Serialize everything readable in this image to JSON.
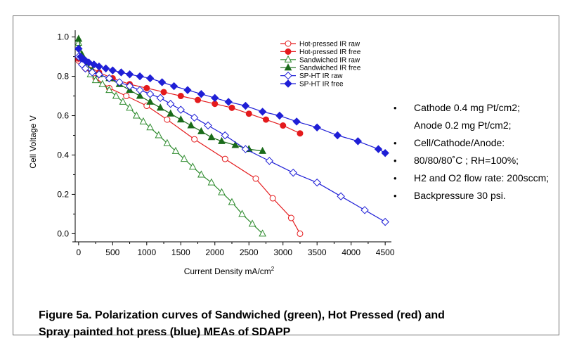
{
  "figure": {
    "caption_line1": "Figure 5a.  Polarization curves of Sandwiched (green), Hot Pressed (red) and",
    "caption_line2": "Spray painted hot press (blue) MEAs of SDAPP"
  },
  "notes": {
    "bullet": "•",
    "lines": [
      "Cathode 0.4 mg Pt/cm2;",
      "Anode 0.2 mg Pt/cm2;",
      "Cell/Cathode/Anode:",
      "80/80/80˚C ; RH=100%;",
      "H2 and O2 flow rate: 200sccm;",
      "Backpressure 30 psi."
    ],
    "bullet_rows": [
      0,
      2,
      3,
      4,
      5
    ]
  },
  "chart_data": {
    "type": "line",
    "xlabel": "Current Density mA/cm",
    "xlabel_sup": "2",
    "ylabel": "Cell Voltage V",
    "xlim": [
      -50,
      4550
    ],
    "ylim": [
      -0.02,
      1.02
    ],
    "xticks": [
      0,
      500,
      1000,
      1500,
      2000,
      2500,
      3000,
      3500,
      4000,
      4500
    ],
    "yticks": [
      0.0,
      0.2,
      0.4,
      0.6,
      0.8,
      1.0
    ],
    "yticklabels": [
      "0.0",
      "0.2",
      "0.4",
      "0.6",
      "0.8",
      "1.0"
    ],
    "legend_position": "top-right",
    "series": [
      {
        "name": "Hot-pressed IR raw",
        "color": "#e41a1c",
        "marker": "circle",
        "filled": false,
        "x": [
          0,
          100,
          250,
          450,
          700,
          1000,
          1300,
          1700,
          2150,
          2600,
          2850,
          3120,
          3250
        ],
        "y": [
          0.88,
          0.84,
          0.79,
          0.74,
          0.7,
          0.65,
          0.58,
          0.48,
          0.38,
          0.28,
          0.18,
          0.08,
          0.0
        ]
      },
      {
        "name": "Hot-pressed IR free",
        "color": "#e41a1c",
        "marker": "circle",
        "filled": true,
        "x": [
          0,
          100,
          300,
          500,
          750,
          1000,
          1250,
          1500,
          1750,
          2000,
          2250,
          2500,
          2750,
          3000,
          3250
        ],
        "y": [
          0.89,
          0.86,
          0.82,
          0.79,
          0.76,
          0.74,
          0.72,
          0.7,
          0.68,
          0.66,
          0.64,
          0.61,
          0.58,
          0.55,
          0.51
        ]
      },
      {
        "name": "Sandwiched IR raw",
        "color": "#2e8b2e",
        "marker": "triangle",
        "filled": false,
        "x": [
          0,
          50,
          100,
          175,
          250,
          350,
          450,
          550,
          650,
          750,
          850,
          950,
          1050,
          1175,
          1300,
          1425,
          1550,
          1675,
          1800,
          1950,
          2100,
          2250,
          2400,
          2550,
          2700
        ],
        "y": [
          0.97,
          0.9,
          0.86,
          0.81,
          0.78,
          0.76,
          0.73,
          0.7,
          0.67,
          0.64,
          0.6,
          0.57,
          0.54,
          0.5,
          0.46,
          0.42,
          0.38,
          0.34,
          0.3,
          0.26,
          0.21,
          0.16,
          0.1,
          0.05,
          0.0
        ]
      },
      {
        "name": "Sandwiched IR free",
        "color": "#1a6b1a",
        "marker": "triangle",
        "filled": true,
        "x": [
          0,
          50,
          100,
          200,
          300,
          450,
          600,
          750,
          900,
          1050,
          1200,
          1350,
          1500,
          1650,
          1800,
          1950,
          2100,
          2300,
          2500,
          2700
        ],
        "y": [
          0.99,
          0.91,
          0.87,
          0.83,
          0.81,
          0.79,
          0.76,
          0.73,
          0.7,
          0.67,
          0.64,
          0.61,
          0.58,
          0.55,
          0.52,
          0.49,
          0.47,
          0.45,
          0.43,
          0.42
        ]
      },
      {
        "name": "SP-HT IR raw",
        "color": "#1f1fd6",
        "marker": "diamond",
        "filled": false,
        "x": [
          0,
          50,
          100,
          200,
          300,
          450,
          600,
          750,
          900,
          1050,
          1200,
          1350,
          1500,
          1700,
          1900,
          2150,
          2450,
          2800,
          3150,
          3500,
          3850,
          4200,
          4500
        ],
        "y": [
          0.9,
          0.86,
          0.84,
          0.82,
          0.81,
          0.79,
          0.77,
          0.75,
          0.73,
          0.71,
          0.69,
          0.66,
          0.63,
          0.59,
          0.55,
          0.5,
          0.43,
          0.37,
          0.31,
          0.26,
          0.19,
          0.12,
          0.06
        ]
      },
      {
        "name": "SP-HT IR free",
        "color": "#1f1fd6",
        "marker": "diamond",
        "filled": true,
        "x": [
          0,
          30,
          60,
          100,
          150,
          225,
          300,
          400,
          500,
          625,
          750,
          900,
          1050,
          1225,
          1400,
          1600,
          1800,
          2000,
          2200,
          2450,
          2700,
          2950,
          3200,
          3500,
          3800,
          4100,
          4400,
          4500
        ],
        "y": [
          0.94,
          0.9,
          0.89,
          0.88,
          0.87,
          0.86,
          0.85,
          0.84,
          0.83,
          0.82,
          0.81,
          0.8,
          0.79,
          0.77,
          0.75,
          0.73,
          0.71,
          0.69,
          0.67,
          0.65,
          0.62,
          0.6,
          0.57,
          0.54,
          0.5,
          0.47,
          0.43,
          0.41
        ]
      }
    ]
  }
}
